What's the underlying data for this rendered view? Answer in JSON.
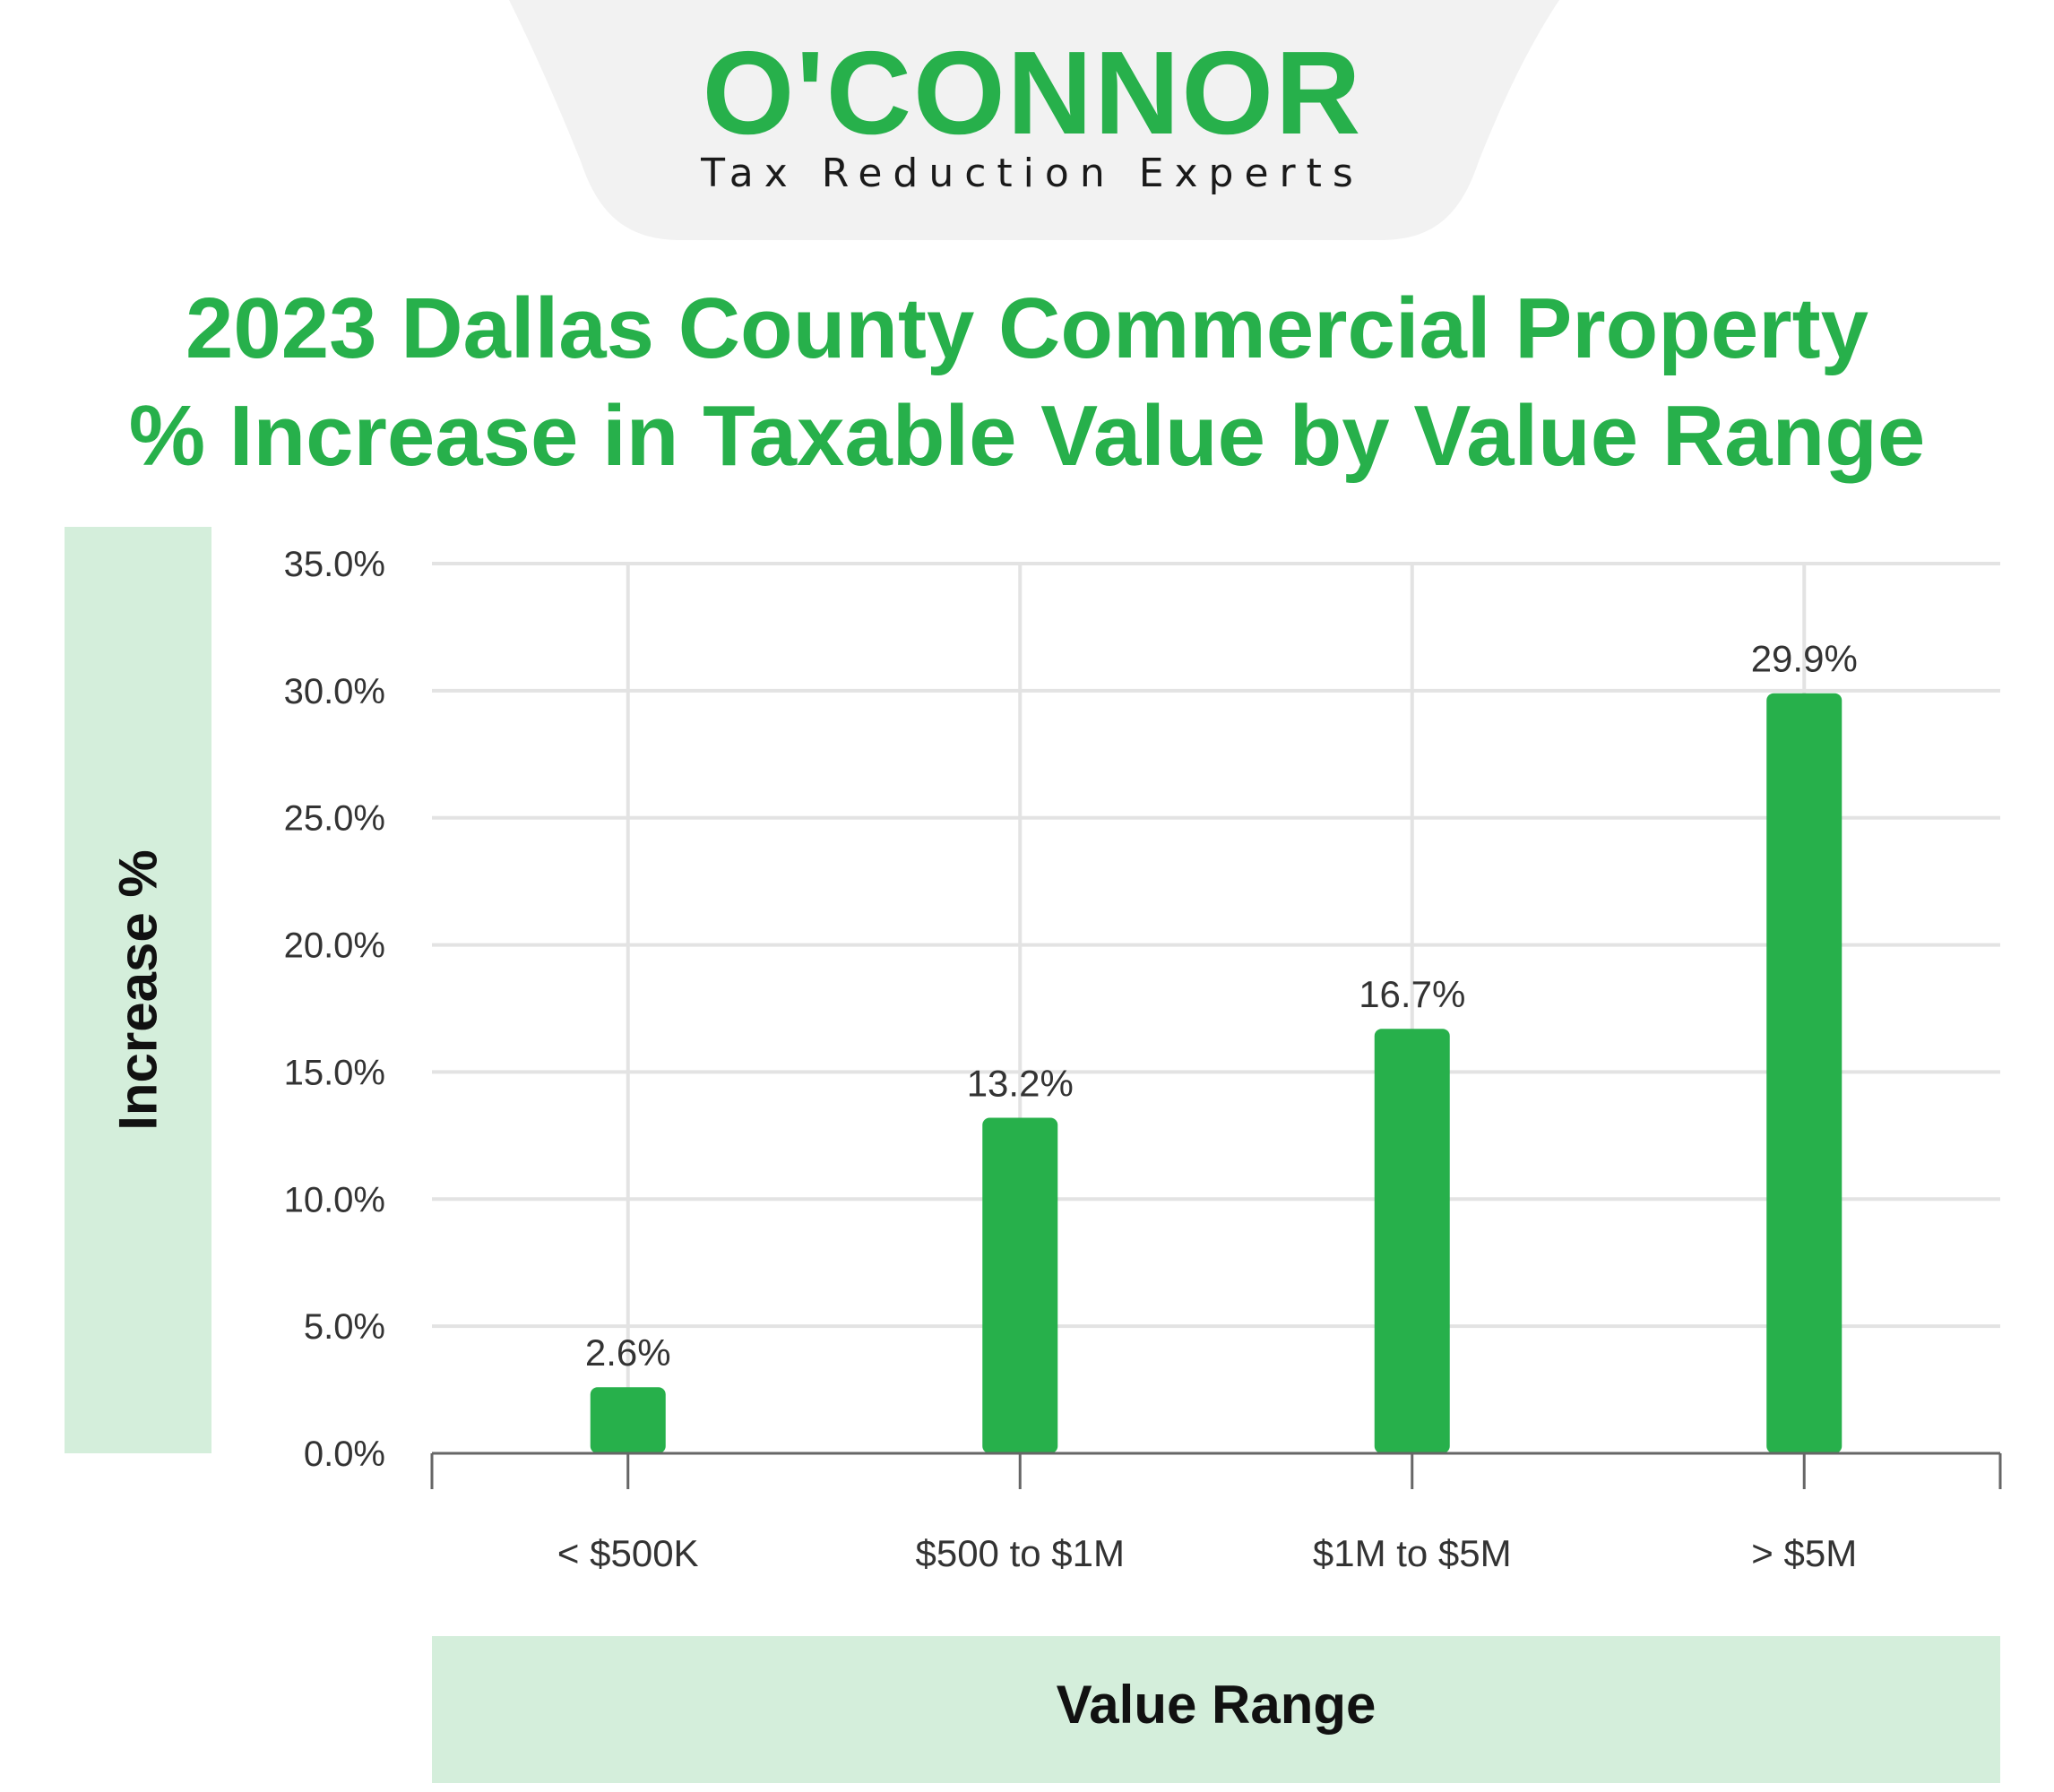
{
  "logo": {
    "wordmark": "O'CONNOR",
    "tagline": "Tax Reduction Experts"
  },
  "colors": {
    "brand_green": "#27b04b",
    "panel_green": "#d4eedb",
    "header_gray": "#f2f2f2"
  },
  "chart_data": {
    "type": "bar",
    "title": "2023 Dallas County Commercial Property",
    "subtitle": "% Increase in Taxable Value by Value Range",
    "xlabel": "Value Range",
    "ylabel": "Increase %",
    "categories": [
      "< $500K",
      "$500 to $1M",
      "$1M to $5M",
      "> $5M"
    ],
    "values": [
      2.6,
      13.2,
      16.7,
      29.9
    ],
    "value_labels": [
      "2.6%",
      "13.2%",
      "16.7%",
      "29.9%"
    ],
    "ylim": [
      0,
      35
    ],
    "yticks": [
      0,
      5,
      10,
      15,
      20,
      25,
      30,
      35
    ],
    "ytick_labels": [
      "0.0%",
      "5.0%",
      "10.0%",
      "15.0%",
      "20.0%",
      "25.0%",
      "30.0%",
      "35.0%"
    ],
    "grid": true,
    "legend": "none"
  }
}
